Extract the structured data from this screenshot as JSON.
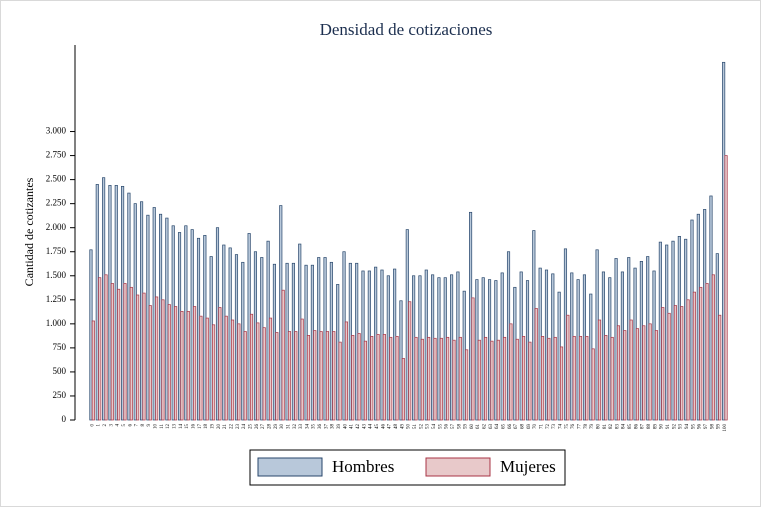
{
  "chart_data": {
    "type": "bar",
    "title": "Densidad de cotizaciones",
    "ylabel": "Cantidad de cotizantes",
    "categories": [
      "0",
      "1",
      "2",
      "3",
      "4",
      "5",
      "6",
      "7",
      "8",
      "9",
      "10",
      "11",
      "12",
      "13",
      "14",
      "15",
      "16",
      "17",
      "18",
      "19",
      "20",
      "21",
      "22",
      "23",
      "24",
      "25",
      "26",
      "27",
      "28",
      "29",
      "30",
      "31",
      "32",
      "33",
      "34",
      "35",
      "36",
      "37",
      "38",
      "39",
      "40",
      "41",
      "42",
      "43",
      "44",
      "45",
      "46",
      "47",
      "48",
      "49",
      "50",
      "51",
      "52",
      "53",
      "54",
      "55",
      "56",
      "57",
      "58",
      "59",
      "60",
      "61",
      "62",
      "63",
      "64",
      "65",
      "66",
      "67",
      "68",
      "69",
      "70",
      "71",
      "72",
      "73",
      "74",
      "75",
      "76",
      "77",
      "78",
      "79",
      "80",
      "81",
      "82",
      "83",
      "84",
      "85",
      "86",
      "87",
      "88",
      "89",
      "90",
      "91",
      "92",
      "93",
      "94",
      "95",
      "96",
      "97",
      "98",
      "99",
      "100"
    ],
    "series": [
      {
        "name": "Hombres",
        "color": "#b8c8da",
        "stroke": "#27466b",
        "values": [
          1770,
          2450,
          2520,
          2440,
          2440,
          2430,
          2360,
          2250,
          2270,
          2130,
          2210,
          2140,
          2100,
          2020,
          1950,
          2020,
          1980,
          1890,
          1920,
          1700,
          2000,
          1820,
          1790,
          1720,
          1640,
          1940,
          1750,
          1690,
          1860,
          1620,
          2230,
          1630,
          1630,
          1830,
          1610,
          1610,
          1690,
          1690,
          1640,
          1410,
          1750,
          1630,
          1630,
          1550,
          1550,
          1590,
          1560,
          1500,
          1570,
          1240,
          1980,
          1500,
          1500,
          1560,
          1510,
          1480,
          1480,
          1510,
          1540,
          1340,
          2160,
          1460,
          1480,
          1460,
          1450,
          1530,
          1750,
          1380,
          1540,
          1450,
          1970,
          1580,
          1560,
          1520,
          1330,
          1780,
          1530,
          1460,
          1510,
          1310,
          1770,
          1540,
          1480,
          1680,
          1540,
          1690,
          1580,
          1650,
          1700,
          1550,
          1850,
          1820,
          1860,
          1910,
          1880,
          2080,
          2140,
          2190,
          2330,
          1730,
          3720
        ]
      },
      {
        "name": "Mujeres",
        "color": "#e8c9ca",
        "stroke": "#a83445",
        "values": [
          1030,
          1480,
          1510,
          1420,
          1360,
          1420,
          1380,
          1300,
          1320,
          1190,
          1280,
          1250,
          1200,
          1180,
          1130,
          1130,
          1180,
          1080,
          1060,
          990,
          1170,
          1080,
          1040,
          1000,
          920,
          1100,
          1010,
          960,
          1060,
          910,
          1350,
          920,
          920,
          1050,
          880,
          930,
          920,
          920,
          920,
          810,
          1020,
          880,
          900,
          820,
          870,
          890,
          890,
          860,
          870,
          640,
          1230,
          860,
          840,
          860,
          850,
          850,
          860,
          830,
          860,
          730,
          1270,
          830,
          860,
          820,
          830,
          860,
          1000,
          840,
          870,
          810,
          1160,
          870,
          850,
          860,
          760,
          1090,
          870,
          870,
          870,
          740,
          1040,
          880,
          860,
          980,
          930,
          1040,
          950,
          980,
          1000,
          930,
          1170,
          1110,
          1190,
          1180,
          1250,
          1330,
          1380,
          1420,
          1510,
          1090,
          2750
        ]
      }
    ],
    "ylim": [
      0,
      3900
    ],
    "yticks": [
      0,
      250,
      500,
      750,
      {
        "value": 1000,
        "label": "1.000"
      },
      {
        "value": 1250,
        "label": "1.250"
      },
      {
        "value": 1500,
        "label": "1.500"
      },
      {
        "value": 1750,
        "label": "1.750"
      },
      {
        "value": 2000,
        "label": "2.000"
      },
      {
        "value": 2250,
        "label": "2.250"
      },
      {
        "value": 2500,
        "label": "2.500"
      },
      {
        "value": 2750,
        "label": "2.750"
      },
      {
        "value": 3000,
        "label": "3.000"
      }
    ]
  }
}
